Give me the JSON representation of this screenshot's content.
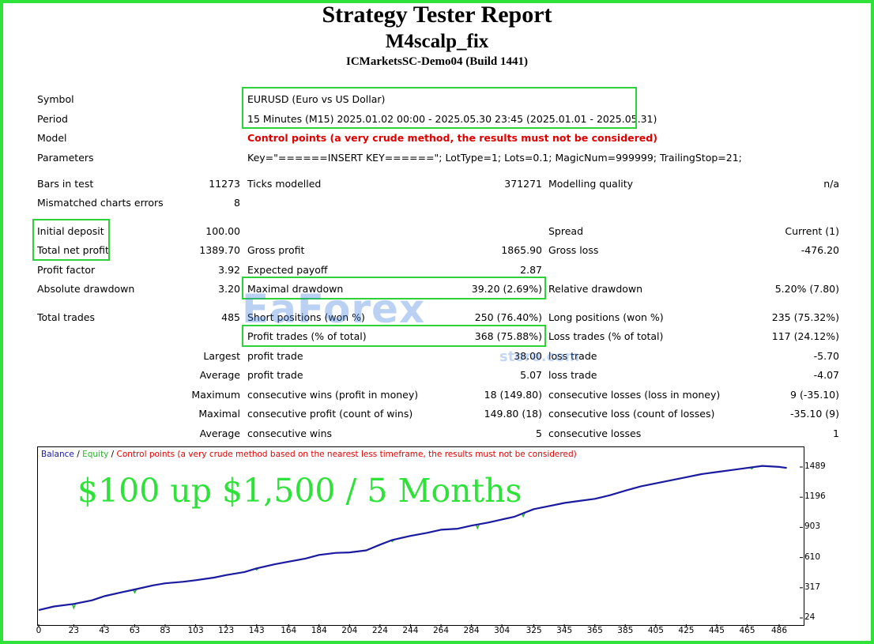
{
  "header": {
    "title": "Strategy Tester Report",
    "ea_name": "M4scalp_fix",
    "server": "ICMarketsSC-Demo04 (Build 1441)"
  },
  "info": {
    "symbol_label": "Symbol",
    "symbol_value": "EURUSD (Euro vs US Dollar)",
    "period_label": "Period",
    "period_value": "15 Minutes (M15) 2025.01.02 00:00 - 2025.05.30 23:45 (2025.01.01 - 2025.05.31)",
    "model_label": "Model",
    "model_value": "Control points (a very crude method, the results must not be considered)",
    "params_label": "Parameters",
    "params_value": "Key=\"======INSERT KEY======\"; LotType=1; Lots=0.1; MagicNum=999999; TrailingStop=21;"
  },
  "stats": {
    "bars_label": "Bars in test",
    "bars_value": "11273",
    "ticks_label": "Ticks modelled",
    "ticks_value": "371271",
    "quality_label": "Modelling quality",
    "quality_value": "n/a",
    "mismatch_label": "Mismatched charts errors",
    "mismatch_value": "8",
    "deposit_label": "Initial deposit",
    "deposit_value": "100.00",
    "spread_label": "Spread",
    "spread_value": "Current (1)",
    "netprofit_label": "Total net profit",
    "netprofit_value": "1389.70",
    "grossprofit_label": "Gross profit",
    "grossprofit_value": "1865.90",
    "grossloss_label": "Gross loss",
    "grossloss_value": "-476.20",
    "pf_label": "Profit factor",
    "pf_value": "3.92",
    "ep_label": "Expected payoff",
    "ep_value": "2.87",
    "absdd_label": "Absolute drawdown",
    "absdd_value": "3.20",
    "maxdd_label": "Maximal drawdown",
    "maxdd_value": "39.20 (2.69%)",
    "reldd_label": "Relative drawdown",
    "reldd_value": "5.20% (7.80)",
    "trades_label": "Total trades",
    "trades_value": "485",
    "short_label": "Short positions (won %)",
    "short_value": "250 (76.40%)",
    "long_label": "Long positions (won %)",
    "long_value": "235 (75.32%)",
    "profittrades_label": "Profit trades (% of total)",
    "profittrades_value": "368 (75.88%)",
    "losstrades_label": "Loss trades (% of total)",
    "losstrades_value": "117 (24.12%)",
    "largest_label": "Largest",
    "largest_profit_label": "profit trade",
    "largest_profit_value": "38.00",
    "largest_loss_label": "loss trade",
    "largest_loss_value": "-5.70",
    "average_label": "Average",
    "average_profit_label": "profit trade",
    "average_profit_value": "5.07",
    "average_loss_label": "loss trade",
    "average_loss_value": "-4.07",
    "maximum_label": "Maximum",
    "max_wins_label": "consecutive wins (profit in money)",
    "max_wins_value": "18 (149.80)",
    "max_losses_label": "consecutive losses (loss in money)",
    "max_losses_value": "9 (-35.10)",
    "maximal_label": "Maximal",
    "maximal_profit_label": "consecutive profit (count of wins)",
    "maximal_profit_value": "149.80 (18)",
    "maximal_loss_label": "consecutive loss (count of losses)",
    "maximal_loss_value": "-35.10 (9)",
    "avgcons_label": "Average",
    "avg_wins_label": "consecutive wins",
    "avg_wins_value": "5",
    "avg_losses_label": "consecutive losses",
    "avg_losses_value": "1"
  },
  "watermark": {
    "brand": "EaForex",
    "sub": "store.com"
  },
  "chart_data": {
    "type": "line",
    "legend": {
      "balance": "Balance",
      "sep1": " / ",
      "equity": "Equity",
      "sep2": " / ",
      "control": "Control points (a very crude method based on the nearest less timeframe, the results must not be considered)"
    },
    "overlay_text": "$100 up $1,500 / 5 Months",
    "x_ticks": [
      "0",
      "23",
      "43",
      "63",
      "83",
      "103",
      "123",
      "143",
      "164",
      "184",
      "204",
      "224",
      "244",
      "264",
      "284",
      "304",
      "325",
      "345",
      "365",
      "385",
      "405",
      "425",
      "445",
      "465",
      "486"
    ],
    "y_ticks": [
      "1489",
      "1196",
      "903",
      "610",
      "317",
      "24"
    ],
    "xlim": [
      0,
      486
    ],
    "ylim": [
      24,
      1489
    ],
    "series": [
      {
        "name": "Balance",
        "color": "#1a1aa0",
        "x": [
          0,
          10,
          23,
          35,
          43,
          55,
          63,
          75,
          83,
          95,
          103,
          115,
          123,
          135,
          143,
          155,
          164,
          175,
          184,
          195,
          204,
          215,
          224,
          232,
          244,
          255,
          264,
          275,
          284,
          295,
          304,
          312,
          318,
          325,
          335,
          345,
          355,
          365,
          375,
          385,
          395,
          405,
          415,
          425,
          435,
          445,
          455,
          465,
          475,
          486,
          491
        ],
        "y": [
          100,
          135,
          160,
          195,
          235,
          275,
          300,
          340,
          360,
          375,
          390,
          415,
          440,
          470,
          505,
          545,
          570,
          600,
          635,
          655,
          660,
          680,
          735,
          780,
          820,
          850,
          880,
          890,
          920,
          950,
          980,
          1005,
          1040,
          1080,
          1110,
          1140,
          1160,
          1180,
          1215,
          1260,
          1300,
          1330,
          1360,
          1390,
          1420,
          1440,
          1460,
          1480,
          1500,
          1490,
          1480
        ]
      }
    ],
    "equity_dips": [
      [
        23,
        120
      ],
      [
        63,
        270
      ],
      [
        143,
        490
      ],
      [
        232,
        765
      ],
      [
        288,
        895
      ],
      [
        318,
        1010
      ],
      [
        391,
        1285
      ],
      [
        468,
        1470
      ]
    ],
    "equity_color": "#2bb52b",
    "balance_color": "#1a1aa0",
    "control_color": "#e00000"
  },
  "colors": {
    "frame": "#2ee23a",
    "highlight": "#2ed13a",
    "model_text": "#e00000"
  }
}
